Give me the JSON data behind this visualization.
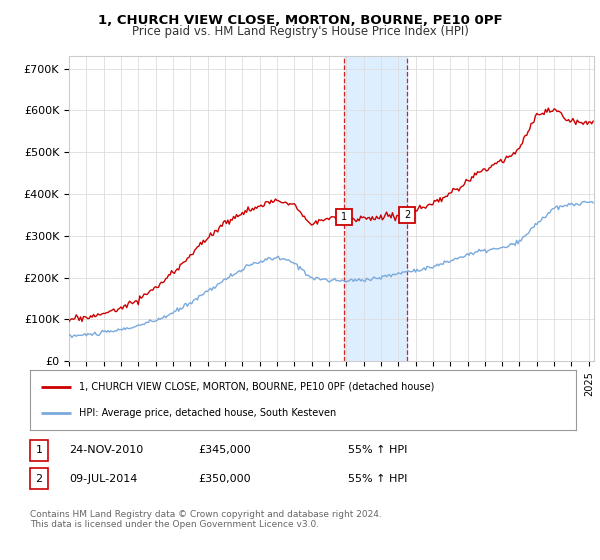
{
  "title": "1, CHURCH VIEW CLOSE, MORTON, BOURNE, PE10 0PF",
  "subtitle": "Price paid vs. HM Land Registry's House Price Index (HPI)",
  "ylabel_ticks": [
    "£0",
    "£100K",
    "£200K",
    "£300K",
    "£400K",
    "£500K",
    "£600K",
    "£700K"
  ],
  "ytick_values": [
    0,
    100000,
    200000,
    300000,
    400000,
    500000,
    600000,
    700000
  ],
  "ylim": [
    0,
    730000
  ],
  "xlim_start": 1995.0,
  "xlim_end": 2025.3,
  "red_line_color": "#cc0000",
  "blue_line_color": "#7aaadd",
  "shade_color": "#ddeeff",
  "marker1_x": 2010.9,
  "marker2_x": 2014.52,
  "marker1_y": 345000,
  "marker2_y": 350000,
  "transaction1_date": "24-NOV-2010",
  "transaction1_price": "£345,000",
  "transaction1_hpi": "55% ↑ HPI",
  "transaction2_date": "09-JUL-2014",
  "transaction2_price": "£350,000",
  "transaction2_hpi": "55% ↑ HPI",
  "legend_label_red": "1, CHURCH VIEW CLOSE, MORTON, BOURNE, PE10 0PF (detached house)",
  "legend_label_blue": "HPI: Average price, detached house, South Kesteven",
  "footnote": "Contains HM Land Registry data © Crown copyright and database right 2024.\nThis data is licensed under the Open Government Licence v3.0.",
  "background_color": "#ffffff",
  "plot_bg_color": "#ffffff",
  "grid_color": "#dddddd"
}
